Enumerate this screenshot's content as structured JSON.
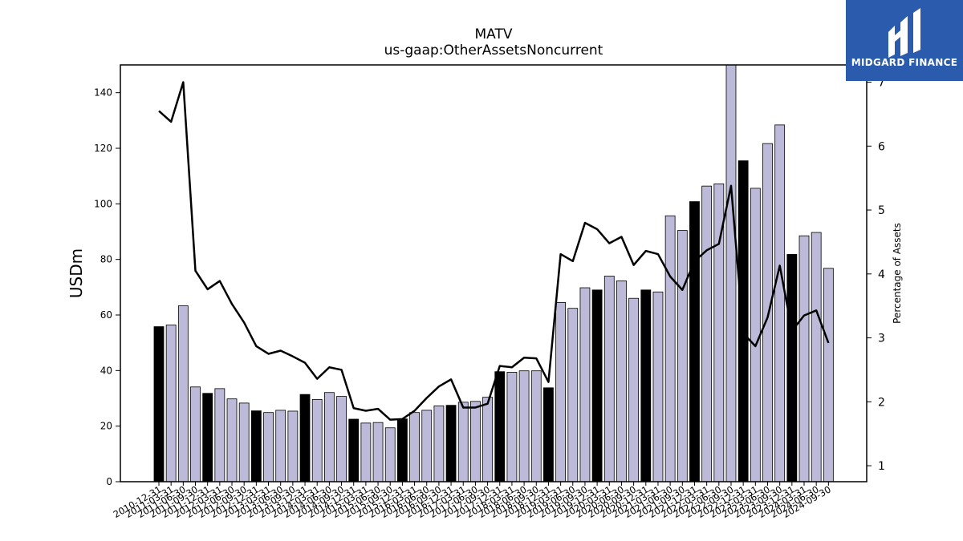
{
  "chart_data": {
    "type": "bar",
    "title": "MATV",
    "subtitle": "us-gaap:OtherAssetsNoncurrent",
    "ylabel": "USDm",
    "y2label": "Percentage of Assets",
    "ylim": [
      0,
      150
    ],
    "y2lim": [
      0.75,
      7.27
    ],
    "yticks": [
      0,
      20,
      40,
      60,
      80,
      100,
      120,
      140
    ],
    "y2ticks": [
      1,
      2,
      3,
      4,
      5,
      6,
      7
    ],
    "grid": false,
    "colors": {
      "annual": "#000000",
      "quarterly": "#bcbad8",
      "line": "#000000",
      "logo_bg": "#2b5bad"
    },
    "categories": [
      "2010-12-31",
      "2011-03-31",
      "2011-06-30",
      "2011-09-30",
      "2011-12-31",
      "2012-03-31",
      "2012-06-30",
      "2012-09-30",
      "2012-12-31",
      "2013-03-31",
      "2013-06-30",
      "2013-09-30",
      "2013-12-31",
      "2014-03-31",
      "2014-06-30",
      "2014-09-30",
      "2014-12-31",
      "2015-03-31",
      "2015-06-30",
      "2015-09-30",
      "2015-12-31",
      "2016-03-31",
      "2016-06-30",
      "2016-09-30",
      "2016-12-31",
      "2017-03-31",
      "2017-06-30",
      "2017-09-30",
      "2017-12-31",
      "2018-03-31",
      "2018-06-30",
      "2018-09-30",
      "2018-12-31",
      "2019-03-31",
      "2019-06-30",
      "2019-09-30",
      "2019-12-31",
      "2020-03-31",
      "2020-06-30",
      "2020-09-30",
      "2020-12-31",
      "2021-03-31",
      "2021-06-30",
      "2021-09-30",
      "2021-12-31",
      "2022-03-31",
      "2022-06-30",
      "2022-09-30",
      "2022-12-31",
      "2023-03-31",
      "2023-06-30",
      "2023-09-30",
      "2023-12-31",
      "2024-03-31",
      "2024-06-30",
      "2024-09-30"
    ],
    "series": [
      {
        "name": "",
        "kind": "bar",
        "values": [
          55.8,
          56.4,
          63.3,
          34.1,
          31.8,
          33.5,
          29.8,
          28.3,
          25.5,
          24.9,
          25.7,
          25.4,
          31.4,
          29.6,
          32.1,
          30.7,
          22.5,
          21.1,
          21.3,
          19.4,
          22.6,
          24.9,
          25.7,
          27.3,
          27.5,
          28.6,
          28.9,
          30.4,
          39.6,
          39.4,
          39.9,
          39.9,
          33.8,
          64.5,
          62.4,
          69.8,
          69.0,
          74.0,
          72.3,
          66.0,
          69.0,
          68.3,
          95.7,
          90.4,
          100.8,
          106.4,
          107.2,
          152.0,
          115.5,
          105.6,
          121.7,
          128.4,
          81.8,
          88.5,
          89.7,
          76.8
        ],
        "annual": [
          true,
          false,
          false,
          false,
          true,
          false,
          false,
          false,
          true,
          false,
          false,
          false,
          true,
          false,
          false,
          false,
          true,
          false,
          false,
          false,
          true,
          false,
          false,
          false,
          true,
          false,
          false,
          false,
          true,
          false,
          false,
          false,
          true,
          false,
          false,
          false,
          true,
          false,
          false,
          false,
          true,
          false,
          false,
          false,
          true,
          false,
          false,
          false,
          true,
          false,
          false,
          false,
          true,
          false,
          false,
          false
        ]
      },
      {
        "name": "",
        "kind": "line",
        "axis": "y2",
        "values": [
          6.55,
          6.38,
          7.0,
          4.05,
          3.76,
          3.89,
          3.53,
          3.24,
          2.87,
          2.75,
          2.8,
          2.71,
          2.61,
          2.36,
          2.54,
          2.5,
          1.9,
          1.86,
          1.89,
          1.72,
          1.73,
          1.86,
          2.06,
          2.24,
          2.35,
          1.91,
          1.91,
          1.97,
          2.56,
          2.54,
          2.69,
          2.68,
          2.31,
          4.31,
          4.2,
          4.8,
          4.7,
          4.48,
          4.58,
          4.14,
          4.36,
          4.31,
          3.96,
          3.75,
          4.2,
          4.37,
          4.47,
          5.38,
          3.07,
          2.87,
          3.32,
          4.13,
          3.11,
          3.35,
          3.43,
          2.92
        ]
      }
    ]
  },
  "logo": {
    "brand": "MIDGARD FINANCE",
    "icon": "midgard-logo-icon"
  }
}
